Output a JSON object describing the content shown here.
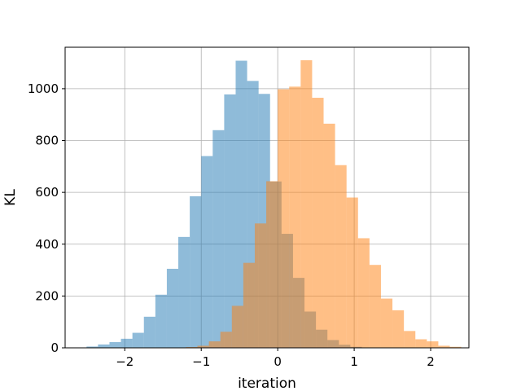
{
  "chart_data": {
    "type": "bar",
    "subtype": "histogram",
    "title": "",
    "xlabel": "iteration",
    "ylabel": "KL",
    "xlim": [
      -2.78,
      2.5
    ],
    "ylim": [
      0,
      1160
    ],
    "xticks": [
      -2,
      -1,
      0,
      1,
      2
    ],
    "xtick_labels": [
      "−2",
      "−1",
      "0",
      "1",
      "2"
    ],
    "yticks": [
      0,
      200,
      400,
      600,
      800,
      1000
    ],
    "ytick_labels": [
      "0",
      "200",
      "400",
      "600",
      "800",
      "1000"
    ],
    "grid": true,
    "legend": "none",
    "series": [
      {
        "color": "#1f77b4",
        "alpha": 0.5,
        "bins": [
          {
            "x0": -2.5,
            "x1": -2.35,
            "count": 5
          },
          {
            "x0": -2.35,
            "x1": -2.2,
            "count": 13
          },
          {
            "x0": -2.2,
            "x1": -2.05,
            "count": 22
          },
          {
            "x0": -2.05,
            "x1": -1.9,
            "count": 35
          },
          {
            "x0": -1.9,
            "x1": -1.75,
            "count": 58
          },
          {
            "x0": -1.75,
            "x1": -1.6,
            "count": 120
          },
          {
            "x0": -1.6,
            "x1": -1.45,
            "count": 205
          },
          {
            "x0": -1.45,
            "x1": -1.3,
            "count": 305
          },
          {
            "x0": -1.3,
            "x1": -1.15,
            "count": 428
          },
          {
            "x0": -1.15,
            "x1": -1.0,
            "count": 585
          },
          {
            "x0": -1.0,
            "x1": -0.85,
            "count": 740
          },
          {
            "x0": -0.85,
            "x1": -0.7,
            "count": 840
          },
          {
            "x0": -0.7,
            "x1": -0.55,
            "count": 978
          },
          {
            "x0": -0.55,
            "x1": -0.4,
            "count": 1108
          },
          {
            "x0": -0.4,
            "x1": -0.25,
            "count": 1030
          },
          {
            "x0": -0.25,
            "x1": -0.1,
            "count": 980
          },
          {
            "x0": -0.1,
            "x1": 0.05,
            "count": 642
          },
          {
            "x0": 0.05,
            "x1": 0.2,
            "count": 440
          },
          {
            "x0": 0.2,
            "x1": 0.35,
            "count": 270
          },
          {
            "x0": 0.35,
            "x1": 0.5,
            "count": 140
          },
          {
            "x0": 0.5,
            "x1": 0.65,
            "count": 70
          },
          {
            "x0": 0.65,
            "x1": 0.8,
            "count": 30
          },
          {
            "x0": 0.8,
            "x1": 0.95,
            "count": 12
          },
          {
            "x0": 0.95,
            "x1": 1.1,
            "count": 4
          }
        ]
      },
      {
        "color": "#ff7f0e",
        "alpha": 0.5,
        "bins": [
          {
            "x0": -1.2,
            "x1": -1.05,
            "count": 3
          },
          {
            "x0": -1.05,
            "x1": -0.9,
            "count": 8
          },
          {
            "x0": -0.9,
            "x1": -0.75,
            "count": 25
          },
          {
            "x0": -0.75,
            "x1": -0.6,
            "count": 62
          },
          {
            "x0": -0.6,
            "x1": -0.45,
            "count": 162
          },
          {
            "x0": -0.45,
            "x1": -0.3,
            "count": 328
          },
          {
            "x0": -0.3,
            "x1": -0.15,
            "count": 480
          },
          {
            "x0": -0.15,
            "x1": 0.0,
            "count": 643
          },
          {
            "x0": 0.0,
            "x1": 0.15,
            "count": 998
          },
          {
            "x0": 0.15,
            "x1": 0.3,
            "count": 1008
          },
          {
            "x0": 0.3,
            "x1": 0.45,
            "count": 1110
          },
          {
            "x0": 0.45,
            "x1": 0.6,
            "count": 965
          },
          {
            "x0": 0.6,
            "x1": 0.75,
            "count": 865
          },
          {
            "x0": 0.75,
            "x1": 0.9,
            "count": 705
          },
          {
            "x0": 0.9,
            "x1": 1.05,
            "count": 580
          },
          {
            "x0": 1.05,
            "x1": 1.2,
            "count": 423
          },
          {
            "x0": 1.2,
            "x1": 1.35,
            "count": 320
          },
          {
            "x0": 1.35,
            "x1": 1.5,
            "count": 190
          },
          {
            "x0": 1.5,
            "x1": 1.65,
            "count": 145
          },
          {
            "x0": 1.65,
            "x1": 1.8,
            "count": 65
          },
          {
            "x0": 1.8,
            "x1": 1.95,
            "count": 33
          },
          {
            "x0": 1.95,
            "x1": 2.1,
            "count": 25
          },
          {
            "x0": 2.1,
            "x1": 2.25,
            "count": 8
          },
          {
            "x0": 2.25,
            "x1": 2.4,
            "count": 4
          }
        ]
      }
    ]
  }
}
